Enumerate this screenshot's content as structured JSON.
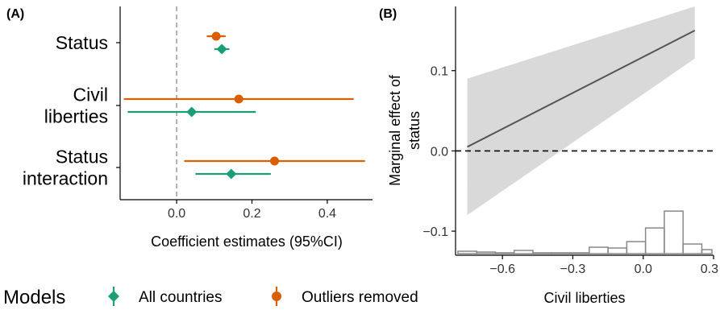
{
  "colors": {
    "all_countries": "#1b9e77",
    "outliers_removed": "#d95f02",
    "ribbon": "#d9d9d9",
    "line": "#555555",
    "hist_stroke": "#888888"
  },
  "legend": {
    "title": "Models",
    "items": [
      {
        "label": "All countries",
        "color": "#1b9e77",
        "shape": "diamond"
      },
      {
        "label": "Outliers removed",
        "color": "#d95f02",
        "shape": "circle"
      }
    ]
  },
  "chart_data": [
    {
      "type": "forest",
      "panel_label": "(A)",
      "xlabel": "Coefficient estimates (95%CI)",
      "xlim": [
        -0.15,
        0.52
      ],
      "xticks": [
        0.0,
        0.2,
        0.4
      ],
      "xtick_labels": [
        "0.0",
        "0.2",
        "0.4"
      ],
      "reference_line": 0,
      "categories": [
        {
          "lines": [
            "Status"
          ]
        },
        {
          "lines": [
            "Civil",
            "liberties"
          ]
        },
        {
          "lines": [
            "Status",
            "interaction"
          ]
        }
      ],
      "series": [
        {
          "name": "All countries",
          "key": "all_countries",
          "shape": "diamond",
          "estimates": [
            0.12,
            0.04,
            0.145
          ],
          "lower": [
            0.1,
            -0.13,
            0.05
          ],
          "upper": [
            0.14,
            0.21,
            0.25
          ]
        },
        {
          "name": "Outliers removed",
          "key": "outliers_removed",
          "shape": "circle",
          "estimates": [
            0.105,
            0.165,
            0.26
          ],
          "lower": [
            0.08,
            -0.14,
            0.02
          ],
          "upper": [
            0.13,
            0.47,
            0.5
          ]
        }
      ]
    },
    {
      "type": "line",
      "panel_label": "(B)",
      "xlabel": "Civil liberties",
      "ylabel": "Marginal effect of status",
      "xlim": [
        -0.8,
        0.3
      ],
      "ylim": [
        -0.13,
        0.18
      ],
      "xticks": [
        -0.6,
        -0.3,
        0.0,
        0.3
      ],
      "xtick_labels": [
        "−0.6",
        "−0.3",
        "0.0",
        "0.3"
      ],
      "yticks": [
        -0.1,
        0.0,
        0.1
      ],
      "ytick_labels": [
        "−0.1",
        "0.0",
        "0.1"
      ],
      "reference_line": 0,
      "line": {
        "x": [
          -0.75,
          0.22
        ],
        "y": [
          0.005,
          0.15
        ]
      },
      "ribbon": {
        "x": [
          -0.75,
          0.22
        ],
        "lower": [
          -0.08,
          0.115
        ],
        "upper": [
          0.09,
          0.18
        ]
      },
      "histogram": {
        "bin_width": 0.08,
        "bins": [
          {
            "x0": -0.79,
            "height": 0.003
          },
          {
            "x0": -0.71,
            "height": 0.002
          },
          {
            "x0": -0.63,
            "height": 0.001
          },
          {
            "x0": -0.55,
            "height": 0.004
          },
          {
            "x0": -0.47,
            "height": 0.001
          },
          {
            "x0": -0.39,
            "height": 0.001
          },
          {
            "x0": -0.31,
            "height": 0.001
          },
          {
            "x0": -0.23,
            "height": 0.008
          },
          {
            "x0": -0.15,
            "height": 0.007
          },
          {
            "x0": -0.07,
            "height": 0.015
          },
          {
            "x0": 0.01,
            "height": 0.032
          },
          {
            "x0": 0.09,
            "height": 0.053
          },
          {
            "x0": 0.17,
            "height": 0.012
          },
          {
            "x0": 0.25,
            "height": 0.005
          }
        ]
      }
    }
  ]
}
